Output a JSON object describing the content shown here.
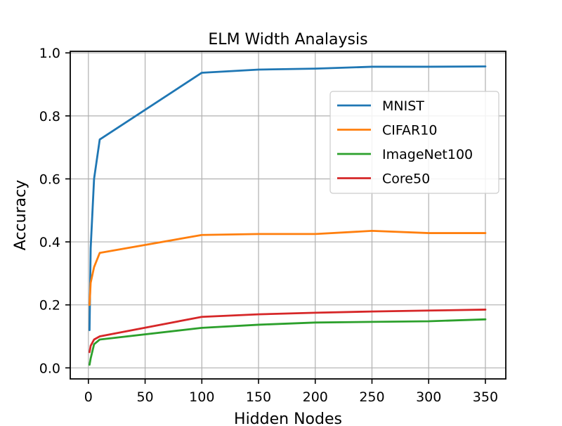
{
  "chart_data": {
    "type": "line",
    "title": "ELM Width Analaysis",
    "xlabel": "Hidden Nodes",
    "ylabel": "Accuracy",
    "xlim": [
      -16,
      368
    ],
    "ylim": [
      -0.035,
      1.005
    ],
    "xticks": [
      0,
      50,
      100,
      150,
      200,
      250,
      300,
      350
    ],
    "yticks": [
      0.0,
      0.2,
      0.4,
      0.6,
      0.8,
      1.0
    ],
    "ytick_labels": [
      "0.0",
      "0.2",
      "0.4",
      "0.6",
      "0.8",
      "1.0"
    ],
    "grid": true,
    "legend_position": "right-upper",
    "x": [
      1,
      2,
      5,
      10,
      100,
      150,
      200,
      250,
      300,
      350
    ],
    "series": [
      {
        "name": "MNIST",
        "color": "#1f77b4",
        "values": [
          0.12,
          0.38,
          0.6,
          0.725,
          0.937,
          0.947,
          0.95,
          0.956,
          0.956,
          0.957
        ]
      },
      {
        "name": "CIFAR10",
        "color": "#ff7f0e",
        "values": [
          0.2,
          0.27,
          0.32,
          0.365,
          0.422,
          0.425,
          0.425,
          0.435,
          0.428,
          0.428
        ]
      },
      {
        "name": "ImageNet100",
        "color": "#2ca02c",
        "values": [
          0.01,
          0.03,
          0.075,
          0.09,
          0.127,
          0.137,
          0.144,
          0.146,
          0.148,
          0.154
        ]
      },
      {
        "name": "Core50",
        "color": "#d62728",
        "values": [
          0.05,
          0.07,
          0.09,
          0.1,
          0.162,
          0.17,
          0.175,
          0.179,
          0.182,
          0.185
        ]
      }
    ]
  }
}
